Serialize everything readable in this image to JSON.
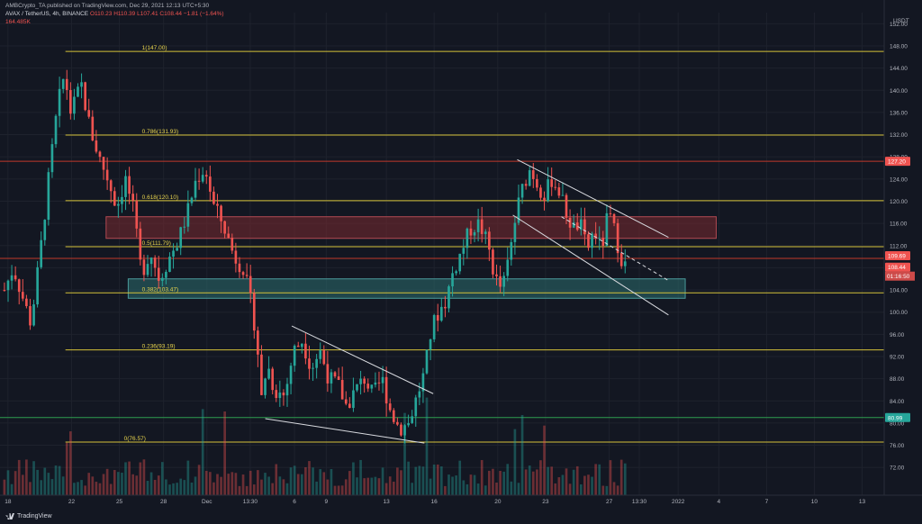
{
  "header": {
    "publish_line": "AMBCrypto_TA published on TradingView.com, Dec 29, 2021 12:13 UTC+5:30",
    "symbol_line": "AVAX / TetherUS, 4h, BINANCE",
    "ohlc": "O110.23  H110.39  L107.41  C108.44  −1.81 (−1.64%)",
    "volume": "164.485K"
  },
  "footer": {
    "brand": "TradingView"
  },
  "colors": {
    "background": "#131722",
    "grid": "#1e222d",
    "up": "#26a69a",
    "down": "#ef5350",
    "fib": "#d4c23a",
    "red_line": "#c0392b",
    "green_line": "#2e9e4f",
    "supply_zone": "#7a2a30",
    "demand_zone": "#2c6e6e"
  },
  "chart_data": {
    "type": "candlestick",
    "timeframe": "4h",
    "currency": "USDT",
    "ylim": [
      67,
      154
    ],
    "x_range": [
      0,
      100
    ],
    "y_ticks": [
      72.0,
      76.0,
      80.0,
      84.0,
      88.0,
      92.0,
      96.0,
      100.0,
      104.0,
      108.0,
      112.0,
      116.0,
      120.0,
      124.0,
      128.0,
      132.0,
      136.0,
      140.0,
      144.0,
      148.0,
      152.0
    ],
    "x_ticks": [
      {
        "label": "18",
        "x": 0.9
      },
      {
        "label": "22",
        "x": 8.1
      },
      {
        "label": "25",
        "x": 13.5
      },
      {
        "label": "28",
        "x": 18.5
      },
      {
        "label": "Dec",
        "x": 23.4
      },
      {
        "label": "13:30",
        "x": 28.3
      },
      {
        "label": "6",
        "x": 33.3
      },
      {
        "label": "9",
        "x": 36.9
      },
      {
        "label": "13",
        "x": 43.7
      },
      {
        "label": "16",
        "x": 49.1
      },
      {
        "label": "20",
        "x": 56.3
      },
      {
        "label": "23",
        "x": 61.7
      },
      {
        "label": "27",
        "x": 68.9
      },
      {
        "label": "13:30",
        "x": 72.3
      },
      {
        "label": "2022",
        "x": 76.7
      },
      {
        "label": "4",
        "x": 81.3
      },
      {
        "label": "7",
        "x": 86.7
      },
      {
        "label": "10",
        "x": 92.1
      },
      {
        "label": "13",
        "x": 97.5
      }
    ],
    "price_path": [
      [
        0.5,
        104
      ],
      [
        1.5,
        108
      ],
      [
        2.5,
        103
      ],
      [
        3.5,
        98
      ],
      [
        4.5,
        110
      ],
      [
        5.5,
        124
      ],
      [
        6.5,
        137
      ],
      [
        7.3,
        143
      ],
      [
        8,
        136
      ],
      [
        9.2,
        141
      ],
      [
        10.2,
        133
      ],
      [
        11.2,
        128
      ],
      [
        12.2,
        124
      ],
      [
        13.2,
        119
      ],
      [
        14.2,
        124
      ],
      [
        15,
        119
      ],
      [
        16,
        107
      ],
      [
        17,
        111
      ],
      [
        18,
        106
      ],
      [
        19.2,
        110
      ],
      [
        20.2,
        113
      ],
      [
        21.2,
        118
      ],
      [
        22.2,
        124
      ],
      [
        23.2,
        126
      ],
      [
        24.2,
        119
      ],
      [
        25.2,
        116
      ],
      [
        26.5,
        110
      ],
      [
        27.5,
        108
      ],
      [
        28.2,
        103
      ],
      [
        29,
        96
      ],
      [
        29.6,
        84
      ],
      [
        30.2,
        91
      ],
      [
        31,
        86
      ],
      [
        32.2,
        85
      ],
      [
        33.2,
        93
      ],
      [
        34.2,
        95
      ],
      [
        35.2,
        90
      ],
      [
        36.2,
        93
      ],
      [
        37.2,
        88
      ],
      [
        38.2,
        87
      ],
      [
        39.2,
        83
      ],
      [
        40.2,
        86
      ],
      [
        41.2,
        88
      ],
      [
        42.2,
        85
      ],
      [
        43.2,
        88
      ],
      [
        44.2,
        82
      ],
      [
        45.2,
        79
      ],
      [
        46.2,
        80
      ],
      [
        47.2,
        85
      ],
      [
        48,
        89
      ],
      [
        48.8,
        97
      ],
      [
        49.6,
        100
      ],
      [
        50.4,
        102
      ],
      [
        51.2,
        107
      ],
      [
        52.2,
        111
      ],
      [
        53.2,
        115
      ],
      [
        54.2,
        116
      ],
      [
        55.2,
        112
      ],
      [
        56,
        106
      ],
      [
        56.8,
        104
      ],
      [
        57.6,
        110
      ],
      [
        58.4,
        118
      ],
      [
        59.2,
        123
      ],
      [
        60,
        126
      ],
      [
        60.8,
        123
      ],
      [
        61.6,
        121
      ],
      [
        62.4,
        124
      ],
      [
        63.2,
        122
      ],
      [
        64,
        118
      ],
      [
        64.8,
        115
      ],
      [
        65.6,
        116
      ],
      [
        66.4,
        111
      ],
      [
        67.2,
        115
      ],
      [
        68,
        111
      ],
      [
        68.8,
        118
      ],
      [
        69.6,
        114
      ],
      [
        70.2,
        110
      ],
      [
        70.7,
        108.44
      ]
    ],
    "volume_bars_count": 170,
    "current_price": 108.44,
    "price_labels": [
      {
        "price": 127.2,
        "label": "127.20",
        "color": "#ef5350"
      },
      {
        "price": 109.69,
        "label": "109.69",
        "color": "#ef5350"
      },
      {
        "price": 108.44,
        "label": "108.44",
        "color": "#ef5350"
      },
      {
        "price": 80.99,
        "label": "80.99",
        "color": "#26a69a"
      }
    ],
    "countdown": "01:16:50",
    "fib_levels": [
      {
        "ratio": "1",
        "price": 147.0,
        "label": "1(147.00)"
      },
      {
        "ratio": "0.786",
        "price": 131.93,
        "label": "0.786(131.93)"
      },
      {
        "ratio": "0.618",
        "price": 120.1,
        "label": "0.618(120.10)"
      },
      {
        "ratio": "0.5",
        "price": 111.79,
        "label": "0.5(111.79)"
      },
      {
        "ratio": "0.382",
        "price": 103.47,
        "label": "0.382(103.47)"
      },
      {
        "ratio": "0.236",
        "price": 93.19,
        "label": "0.236(93.19)"
      },
      {
        "ratio": "0",
        "price": 76.57,
        "label": "0(76.57)"
      }
    ],
    "fib_x_start": 7.4,
    "horizontal_lines": [
      {
        "price": 127.2,
        "color": "red"
      },
      {
        "price": 109.69,
        "color": "red"
      },
      {
        "price": 80.99,
        "color": "green"
      }
    ],
    "zones": [
      {
        "name": "supply",
        "x0": 12,
        "x1": 81,
        "y0": 113.3,
        "y1": 117.2
      },
      {
        "name": "demand",
        "x0": 14.5,
        "x1": 77.5,
        "y0": 102.5,
        "y1": 106.0
      }
    ],
    "trendlines": [
      {
        "name": "wedge-upper",
        "x0": 33,
        "y0": 97.5,
        "x1": 49,
        "y1": 85.3
      },
      {
        "name": "wedge-lower",
        "x0": 30,
        "y0": 80.8,
        "x1": 48,
        "y1": 76.4
      },
      {
        "name": "channel-upper",
        "x0": 58.5,
        "y0": 127.5,
        "x1": 75.6,
        "y1": 113.5
      },
      {
        "name": "channel-lower",
        "x0": 58,
        "y0": 117.5,
        "x1": 75.6,
        "y1": 99.5
      },
      {
        "name": "channel-mid",
        "x0": 63.5,
        "y0": 117.2,
        "x1": 75.6,
        "y1": 105.7,
        "dashed": true
      }
    ]
  }
}
